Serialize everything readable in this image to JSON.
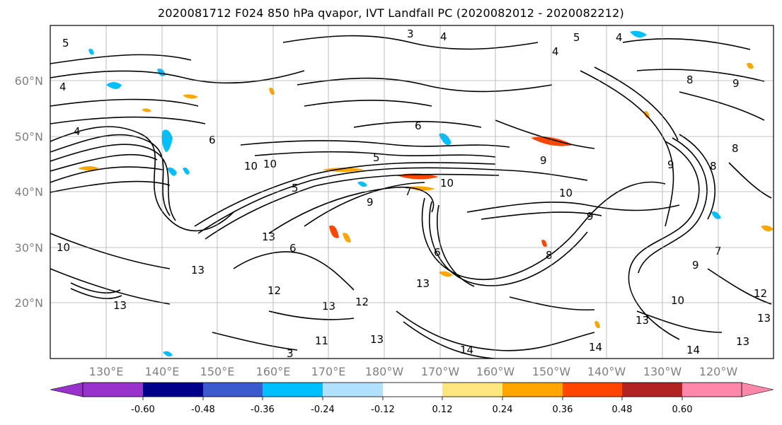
{
  "title": "2020081712 F024 850 hPa qvapor, IVT Landfall PC (2020082012 - 2020082212)",
  "map": {
    "lat_ticks": [
      "60°N",
      "50°N",
      "40°N",
      "30°N",
      "20°N"
    ],
    "lon_ticks": [
      "130°E",
      "140°E",
      "150°E",
      "160°E",
      "170°E",
      "180°W",
      "170°W",
      "160°W",
      "150°W",
      "140°W",
      "130°W",
      "120°W"
    ],
    "lat_range": [
      10,
      70
    ],
    "lon_range": [
      120,
      250
    ],
    "grid": true,
    "contour_color": "#000000",
    "contour_labels": [
      "5",
      "4",
      "3",
      "4",
      "5",
      "4",
      "4",
      "8",
      "9",
      "4",
      "6",
      "6",
      "5",
      "9",
      "10",
      "5",
      "7",
      "10",
      "10",
      "9",
      "6",
      "8",
      "13",
      "9",
      "13",
      "13",
      "10",
      "12",
      "13",
      "13",
      "13",
      "12",
      "14",
      "14",
      "13",
      "14",
      "13",
      "9",
      "10",
      "7",
      "9",
      "8",
      "8",
      "13",
      "11",
      "10",
      "3",
      "6",
      "12"
    ]
  },
  "colorbar": {
    "ticks": [
      "-0.60",
      "-0.48",
      "-0.36",
      "-0.24",
      "-0.12",
      "0.12",
      "0.24",
      "0.36",
      "0.48",
      "0.60"
    ],
    "colors": [
      "#9932CC",
      "#00008B",
      "#3A5ACD",
      "#00BFFF",
      "#B0E2FF",
      "#FFFFFF",
      "#FFE680",
      "#FFA500",
      "#FF4500",
      "#B22222",
      "#FF88AA"
    ],
    "extend": "both"
  }
}
